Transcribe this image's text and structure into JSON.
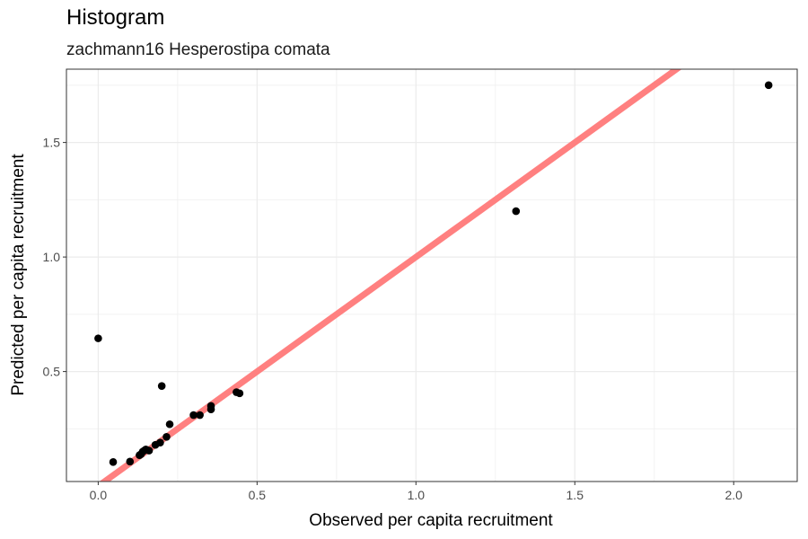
{
  "chart_data": {
    "type": "scatter",
    "title": "Histogram",
    "subtitle": "zachmann16 Hesperostipa comata",
    "xlabel": "Observed per capita recruitment",
    "ylabel": "Predicted per capita recruitment",
    "xlim": [
      -0.1,
      2.2
    ],
    "ylim": [
      0.02,
      1.82
    ],
    "x_ticks": [
      0.0,
      0.5,
      1.0,
      1.5,
      2.0
    ],
    "x_tick_labels": [
      "0.0",
      "0.5",
      "1.0",
      "1.5",
      "2.0"
    ],
    "y_ticks": [
      0.5,
      1.0,
      1.5
    ],
    "y_tick_labels": [
      "0.5",
      "1.0",
      "1.5"
    ],
    "grid": true,
    "reference_line": {
      "type": "identity",
      "slope": 1,
      "intercept": 0,
      "color": "#ff8080"
    },
    "point_color": "#000000",
    "points": [
      {
        "x": 0.0,
        "y": 0.645
      },
      {
        "x": 0.047,
        "y": 0.105
      },
      {
        "x": 0.1,
        "y": 0.107
      },
      {
        "x": 0.13,
        "y": 0.135
      },
      {
        "x": 0.135,
        "y": 0.14
      },
      {
        "x": 0.14,
        "y": 0.15
      },
      {
        "x": 0.145,
        "y": 0.155
      },
      {
        "x": 0.15,
        "y": 0.16
      },
      {
        "x": 0.16,
        "y": 0.155
      },
      {
        "x": 0.18,
        "y": 0.18
      },
      {
        "x": 0.195,
        "y": 0.19
      },
      {
        "x": 0.2,
        "y": 0.437
      },
      {
        "x": 0.215,
        "y": 0.215
      },
      {
        "x": 0.225,
        "y": 0.27
      },
      {
        "x": 0.3,
        "y": 0.31
      },
      {
        "x": 0.32,
        "y": 0.31
      },
      {
        "x": 0.355,
        "y": 0.335
      },
      {
        "x": 0.355,
        "y": 0.35
      },
      {
        "x": 0.435,
        "y": 0.41
      },
      {
        "x": 0.445,
        "y": 0.405
      },
      {
        "x": 1.315,
        "y": 1.2
      },
      {
        "x": 2.11,
        "y": 1.75
      }
    ]
  }
}
